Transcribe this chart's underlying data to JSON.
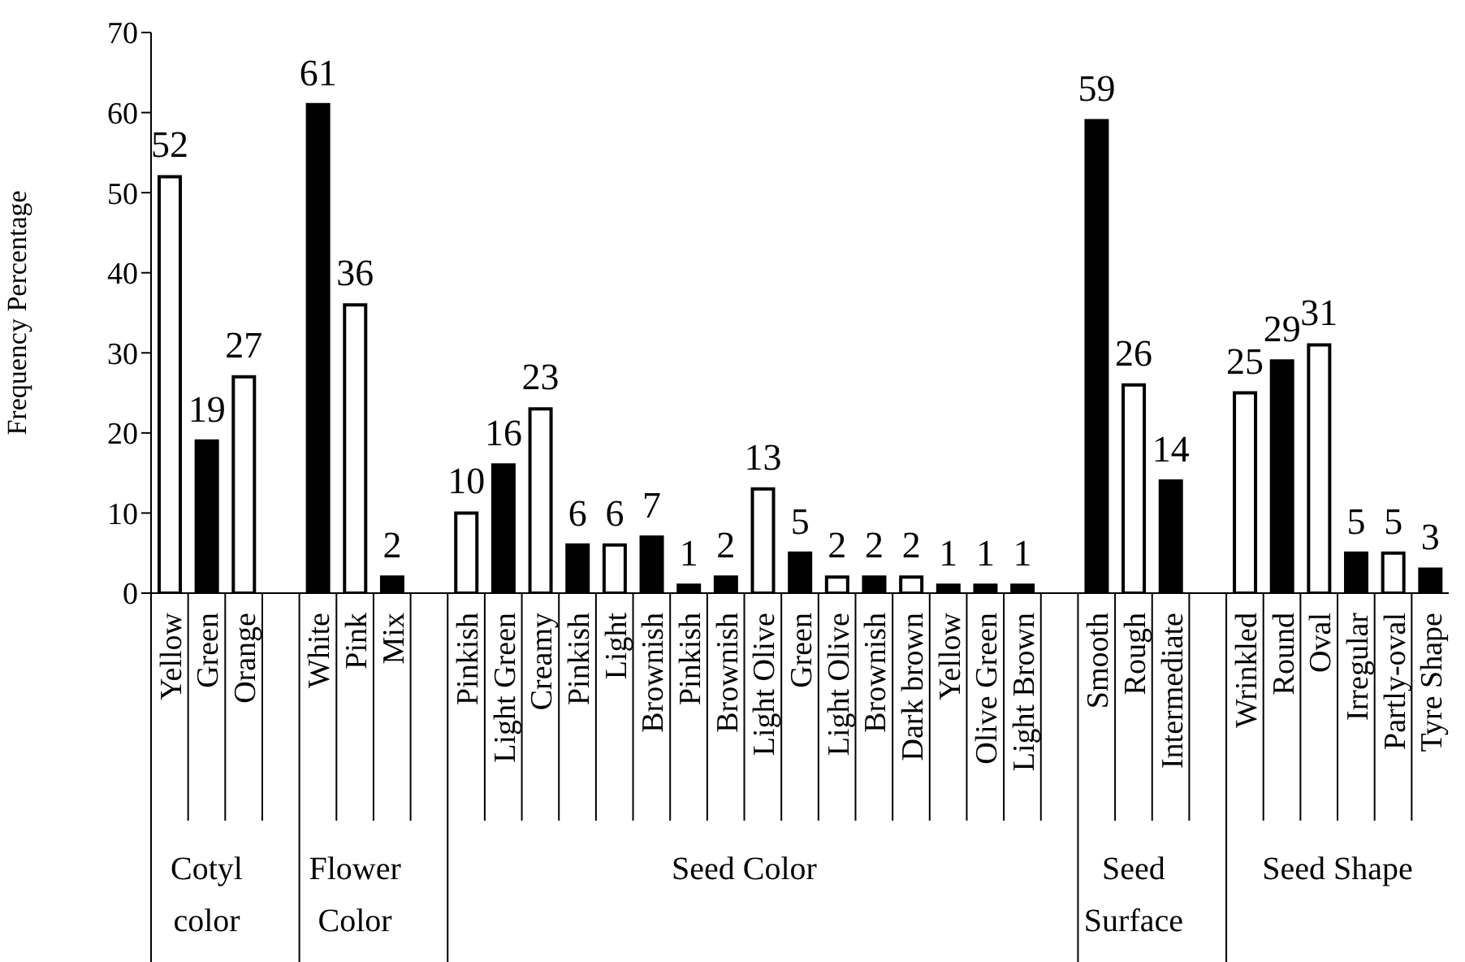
{
  "chart_data": {
    "type": "bar",
    "ylabel": "Frequency Percentage",
    "categories": [
      "Yellow",
      "Green",
      "Orange",
      null,
      "White",
      "Pink",
      "Mix",
      null,
      "Pinkish",
      "Light Green",
      "Creamy",
      "Pinkish",
      "Light",
      "Brownish",
      "Pinkish",
      "Brownish",
      "Light Olive",
      "Green",
      "Light Olive",
      "Brownish",
      "Dark brown",
      "Yellow",
      "Olive Green",
      "Light Brown",
      null,
      "Smooth",
      "Rough",
      "Intermediate",
      null,
      "Wrinkled",
      "Round",
      "Oval",
      "Irregular",
      "Partly-oval",
      "Tyre Shape"
    ],
    "values": [
      52,
      19,
      27,
      null,
      61,
      36,
      2,
      null,
      10,
      16,
      23,
      6,
      6,
      7,
      1,
      2,
      13,
      5,
      2,
      2,
      2,
      1,
      1,
      1,
      null,
      59,
      26,
      14,
      null,
      25,
      29,
      31,
      5,
      5,
      3
    ],
    "colors": [
      "#ffffff",
      "#000000",
      "#ffffff",
      null,
      "#000000",
      "#ffffff",
      "#000000",
      null,
      "#ffffff",
      "#000000",
      "#ffffff",
      "#000000",
      "#ffffff",
      "#000000",
      "#000000",
      "#000000",
      "#ffffff",
      "#000000",
      "#ffffff",
      "#000000",
      "#ffffff",
      "#000000",
      "#000000",
      "#000000",
      null,
      "#000000",
      "#ffffff",
      "#000000",
      null,
      "#ffffff",
      "#000000",
      "#ffffff",
      "#000000",
      "#ffffff",
      "#000000"
    ],
    "annotations": [
      "Cotyl color",
      "Flower Color",
      "Seed Color",
      "Seed Surface",
      "Seed Shape"
    ],
    "ylim": [
      0,
      70
    ],
    "yticks": [
      0,
      10,
      20,
      30,
      40,
      50,
      60,
      70
    ],
    "data_labels": true,
    "grid": false,
    "legend": false
  }
}
